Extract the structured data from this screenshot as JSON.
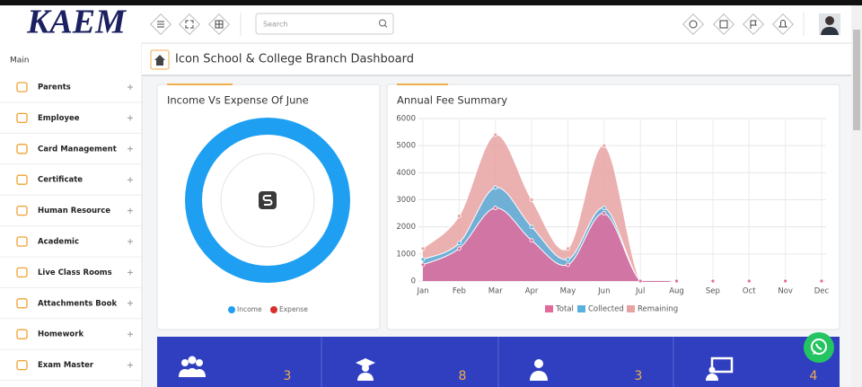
{
  "logo": "KAEM",
  "sidebar": {
    "section": "Main",
    "items": [
      "Parents",
      "Employee",
      "Card Management",
      "Certificate",
      "Human Resource",
      "Academic",
      "Live Class Rooms",
      "Attachments Book",
      "Homework",
      "Exam Master"
    ]
  },
  "header": {
    "search_placeholder": "Search"
  },
  "page_title": "Icon School & College Branch Dashboard",
  "chart_data": [
    {
      "type": "pie",
      "donut": true,
      "title": "Income Vs Expense Of June",
      "categories": [
        "Income",
        "Expense"
      ],
      "values": [
        100,
        0
      ],
      "colors": [
        "#1e9ff2",
        "#d9302c"
      ],
      "legend": "bottom"
    },
    {
      "type": "line",
      "area": true,
      "title": "Annual Fee Summary",
      "x": [
        "Jan",
        "Feb",
        "Mar",
        "Apr",
        "May",
        "Jun",
        "Jul",
        "Aug",
        "Sep",
        "Oct",
        "Nov",
        "Dec"
      ],
      "series": [
        {
          "name": "Total",
          "color": "#e26b9c",
          "values": [
            600,
            1200,
            2700,
            1500,
            600,
            2500,
            0,
            0,
            0,
            0,
            0,
            0
          ]
        },
        {
          "name": "Collected",
          "color": "#5ab0de",
          "values": [
            800,
            1400,
            3450,
            2000,
            800,
            2700,
            0,
            0,
            0,
            0,
            0,
            0
          ]
        },
        {
          "name": "Remaining",
          "color": "#e8a2a2",
          "values": [
            1200,
            2400,
            5400,
            3000,
            1200,
            5000,
            0,
            0,
            0,
            0,
            0,
            0
          ]
        }
      ],
      "ylim": [
        0,
        6000
      ],
      "yticks": [
        0,
        1000,
        2000,
        3000,
        4000,
        5000,
        6000
      ],
      "grid": true,
      "legend": "bottom"
    }
  ],
  "stats": [
    3,
    8,
    3,
    4
  ]
}
